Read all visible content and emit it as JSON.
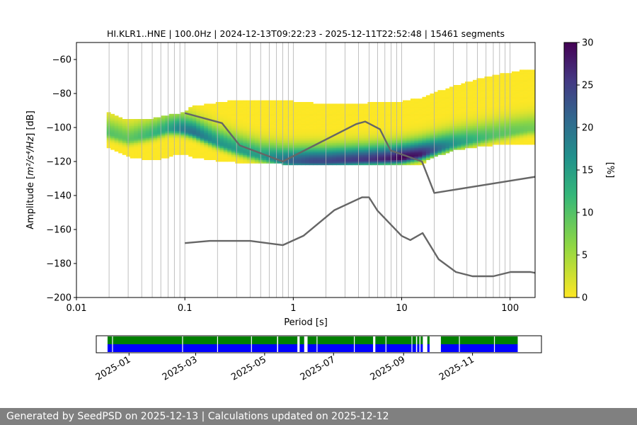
{
  "chart_data": [
    {
      "type": "heatmap",
      "title": "HI.KLR1..HNE | 100.0Hz | 2024-12-13T09:22:23 - 2025-12-11T22:52:48 | 15461 segments",
      "xlabel": "Period [s]",
      "ylabel_main": "Amplitude [",
      "ylabel_math": "m²/s⁴/Hz",
      "ylabel_end": "] [dB]",
      "xscale": "log",
      "xlim": [
        0.01,
        170
      ],
      "ylim": [
        -200,
        -50
      ],
      "xticks": [
        {
          "value": 0.01,
          "label": "0.01"
        },
        {
          "value": 0.1,
          "label": "0.1"
        },
        {
          "value": 1,
          "label": "1"
        },
        {
          "value": 10,
          "label": "10"
        },
        {
          "value": 100,
          "label": "100"
        }
      ],
      "yticks": [
        {
          "value": -60,
          "label": "−60"
        },
        {
          "value": -80,
          "label": "−80"
        },
        {
          "value": -100,
          "label": "−100"
        },
        {
          "value": -120,
          "label": "−120"
        },
        {
          "value": -140,
          "label": "−140"
        },
        {
          "value": -160,
          "label": "−160"
        },
        {
          "value": -180,
          "label": "−180"
        },
        {
          "value": -200,
          "label": "−200"
        }
      ],
      "grid": true,
      "grid_periods": [
        0.02,
        0.03,
        0.04,
        0.05,
        0.06,
        0.07,
        0.08,
        0.09,
        0.1,
        0.2,
        0.3,
        0.4,
        0.5,
        0.6,
        0.7,
        0.8,
        0.9,
        1,
        2,
        3,
        4,
        5,
        6,
        7,
        8,
        9,
        10,
        20,
        30,
        40,
        50,
        60,
        70,
        80,
        90,
        100
      ],
      "density_ridge": {
        "period": [
          0.019,
          0.03,
          0.05,
          0.07,
          0.09,
          0.12,
          0.2,
          0.3,
          0.5,
          0.8,
          1.0,
          1.5,
          2,
          3,
          5,
          8,
          10,
          15,
          20,
          30,
          50,
          70,
          100,
          150,
          170
        ],
        "amplitude_db": [
          -103,
          -107,
          -104,
          -101,
          -101,
          -103,
          -109,
          -113,
          -117,
          -119.5,
          -120,
          -120,
          -120,
          -119.5,
          -119,
          -118.5,
          -118,
          -116,
          -113.5,
          -110,
          -107,
          -105,
          -103,
          -101,
          -101
        ],
        "peak_percent": [
          10,
          9,
          12,
          14,
          18,
          20,
          16,
          15,
          15,
          20,
          22,
          24,
          24,
          25,
          26,
          28,
          30,
          28,
          22,
          16,
          12,
          10,
          9,
          8,
          8
        ],
        "max_amplitude_db": [
          -91,
          -96,
          -95,
          -93,
          -92,
          -88,
          -86,
          -84,
          -84,
          -84,
          -85,
          -86,
          -86,
          -86,
          -86,
          -85,
          -85,
          -83,
          -80,
          -76,
          -72,
          -70,
          -68,
          -66,
          -66
        ],
        "min_amplitude_db": [
          -112,
          -118,
          -120,
          -118,
          -116,
          -118,
          -120,
          -121,
          -121,
          -122,
          -122,
          -122,
          -122,
          -122,
          -122,
          -122,
          -122,
          -122,
          -118,
          -114,
          -112,
          -111,
          -110,
          -110,
          -110
        ]
      },
      "noise_models": [
        {
          "period": [
            0.1,
            0.17,
            0.4,
            0.8,
            1.24,
            2.4,
            4.3,
            5.0,
            6.0,
            10.0,
            12.0,
            15.6,
            21.9,
            31.6,
            45.0,
            70.0,
            101.0,
            154.0,
            170.0
          ],
          "amplitude_db": [
            -168,
            -166.7,
            -166.7,
            -169.2,
            -163.7,
            -148.6,
            -141.1,
            -141.1,
            -149.0,
            -163.8,
            -166.2,
            -162.1,
            -177.5,
            -185.0,
            -187.5,
            -187.5,
            -185.0,
            -185.0,
            -185.5
          ]
        },
        {
          "period": [
            0.1,
            0.22,
            0.32,
            0.8,
            3.8,
            4.6,
            6.3,
            7.9,
            15.4,
            20.0,
            170.0
          ],
          "amplitude_db": [
            -91.5,
            -97.4,
            -110.5,
            -120.0,
            -98.0,
            -96.5,
            -101.0,
            -113.5,
            -120.0,
            -138.5,
            -129.0
          ]
        }
      ],
      "colorbar": {
        "label": "[%]",
        "range": [
          0,
          30
        ],
        "ticks": [
          "0",
          "5",
          "10",
          "15",
          "20",
          "25",
          "30"
        ],
        "colormap": "viridis_r"
      }
    },
    {
      "type": "timeline",
      "xlabels": [
        "2025-01",
        "2025-03",
        "2025-05",
        "2025-07",
        "2025-09",
        "2025-11"
      ],
      "xlabel_dates": [
        "2025-01-01",
        "2025-03-01",
        "2025-05-01",
        "2025-07-01",
        "2025-09-01",
        "2025-11-01"
      ],
      "xlim": [
        "2024-12-03",
        "2026-01-01"
      ],
      "rows": [
        {
          "color": "#008000",
          "role": "upper"
        },
        {
          "color": "#0000ff",
          "role": "lower"
        }
      ],
      "available_segments": [
        [
          "2024-12-13",
          "2025-05-12"
        ],
        [
          "2025-05-13",
          "2025-05-30"
        ],
        [
          "2025-06-01",
          "2025-06-05"
        ],
        [
          "2025-06-08",
          "2025-08-05"
        ],
        [
          "2025-08-07",
          "2025-09-12"
        ],
        [
          "2025-09-13",
          "2025-09-15"
        ],
        [
          "2025-09-16",
          "2025-09-18"
        ],
        [
          "2025-09-22",
          "2025-09-24"
        ],
        [
          "2025-10-04",
          "2025-12-11"
        ]
      ],
      "lower_gaps": [
        "2024-12-17",
        "2025-02-17",
        "2025-03-20",
        "2025-04-19",
        "2025-06-16",
        "2025-07-19",
        "2025-08-16",
        "2025-09-08",
        "2025-10-20",
        "2025-11-20"
      ]
    }
  ],
  "footer": {
    "text": "Generated by SeedPSD on 2025-12-13 | Calculations updated on 2025-12-12"
  }
}
